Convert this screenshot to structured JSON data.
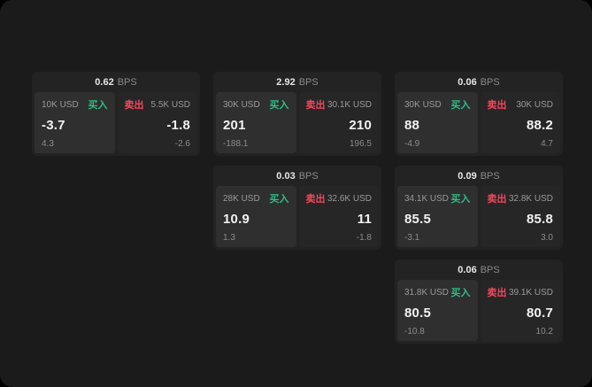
{
  "window": {
    "background": "#000000",
    "surface": "#1b1b1b"
  },
  "labels": {
    "bps": "BPS",
    "buy": "买入",
    "sell": "卖出"
  },
  "colors": {
    "buy": "#2ebd85",
    "sell": "#f6465d"
  },
  "cards": [
    {
      "bps": "0.62",
      "col": 1,
      "row": 1,
      "buy": {
        "amount": "10K USD",
        "price": "-3.7",
        "change": "4.3"
      },
      "sell": {
        "amount": "5.5K USD",
        "price": "-1.8",
        "change": "-2.6"
      }
    },
    {
      "bps": "2.92",
      "col": 2,
      "row": 1,
      "buy": {
        "amount": "30K USD",
        "price": "201",
        "change": "-188.1"
      },
      "sell": {
        "amount": "30.1K USD",
        "price": "210",
        "change": "196.5"
      }
    },
    {
      "bps": "0.06",
      "col": 3,
      "row": 1,
      "buy": {
        "amount": "30K USD",
        "price": "88",
        "change": "-4.9"
      },
      "sell": {
        "amount": "30K USD",
        "price": "88.2",
        "change": "4.7"
      }
    },
    {
      "bps": "0.03",
      "col": 2,
      "row": 2,
      "buy": {
        "amount": "28K USD",
        "price": "10.9",
        "change": "1.3"
      },
      "sell": {
        "amount": "32.6K USD",
        "price": "11",
        "change": "-1.8"
      }
    },
    {
      "bps": "0.09",
      "col": 3,
      "row": 2,
      "buy": {
        "amount": "34.1K USD",
        "price": "85.5",
        "change": "-3.1"
      },
      "sell": {
        "amount": "32.8K USD",
        "price": "85.8",
        "change": "3.0"
      }
    },
    {
      "bps": "0.06",
      "col": 3,
      "row": 3,
      "buy": {
        "amount": "31.8K USD",
        "price": "80.5",
        "change": "-10.8"
      },
      "sell": {
        "amount": "39.1K USD",
        "price": "80.7",
        "change": "10.2"
      }
    }
  ]
}
